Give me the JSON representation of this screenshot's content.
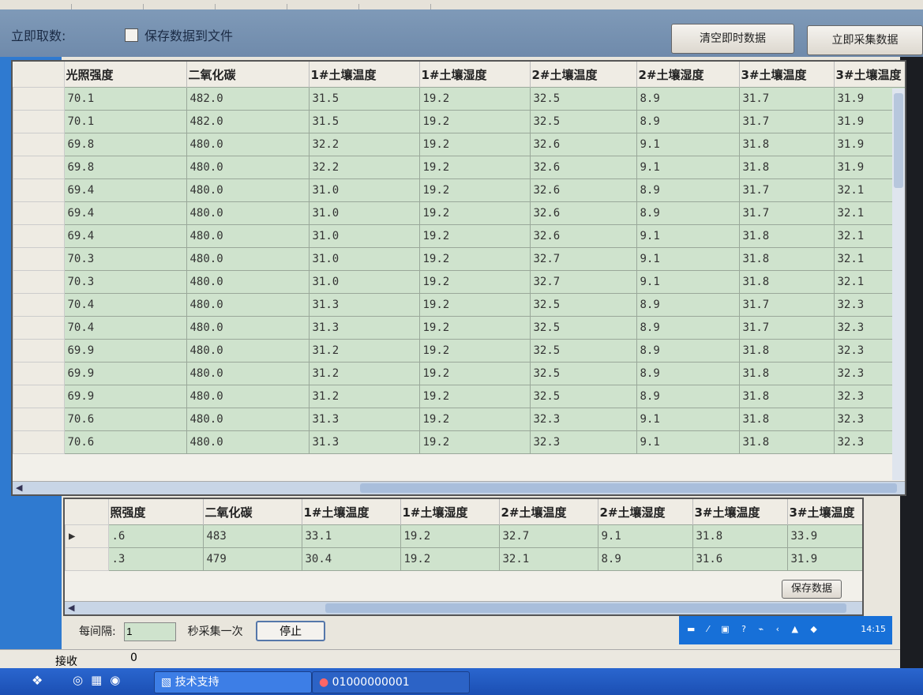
{
  "toolbar": {
    "label": "立即取数:",
    "save_to_file": "保存数据到文件",
    "save_to_file_checked": false,
    "clear_button": "清空即时数据",
    "collect_button": "立即采集数据"
  },
  "columns": [
    "光照强度",
    "二氧化碳",
    "1#土壤温度",
    "1#土壤湿度",
    "2#土壤温度",
    "2#土壤湿度",
    "3#土壤温度",
    "3#土壤温度"
  ],
  "rows": [
    [
      "70.1",
      "482.0",
      "31.5",
      "19.2",
      "32.5",
      "8.9",
      "31.7",
      "31.9"
    ],
    [
      "70.1",
      "482.0",
      "31.5",
      "19.2",
      "32.5",
      "8.9",
      "31.7",
      "31.9"
    ],
    [
      "69.8",
      "480.0",
      "32.2",
      "19.2",
      "32.6",
      "9.1",
      "31.8",
      "31.9"
    ],
    [
      "69.8",
      "480.0",
      "32.2",
      "19.2",
      "32.6",
      "9.1",
      "31.8",
      "31.9"
    ],
    [
      "69.4",
      "480.0",
      "31.0",
      "19.2",
      "32.6",
      "8.9",
      "31.7",
      "32.1"
    ],
    [
      "69.4",
      "480.0",
      "31.0",
      "19.2",
      "32.6",
      "8.9",
      "31.7",
      "32.1"
    ],
    [
      "69.4",
      "480.0",
      "31.0",
      "19.2",
      "32.6",
      "9.1",
      "31.8",
      "32.1"
    ],
    [
      "70.3",
      "480.0",
      "31.0",
      "19.2",
      "32.7",
      "9.1",
      "31.8",
      "32.1"
    ],
    [
      "70.3",
      "480.0",
      "31.0",
      "19.2",
      "32.7",
      "9.1",
      "31.8",
      "32.1"
    ],
    [
      "70.4",
      "480.0",
      "31.3",
      "19.2",
      "32.5",
      "8.9",
      "31.7",
      "32.3"
    ],
    [
      "70.4",
      "480.0",
      "31.3",
      "19.2",
      "32.5",
      "8.9",
      "31.7",
      "32.3"
    ],
    [
      "69.9",
      "480.0",
      "31.2",
      "19.2",
      "32.5",
      "8.9",
      "31.8",
      "32.3"
    ],
    [
      "69.9",
      "480.0",
      "31.2",
      "19.2",
      "32.5",
      "8.9",
      "31.8",
      "32.3"
    ],
    [
      "69.9",
      "480.0",
      "31.2",
      "19.2",
      "32.5",
      "8.9",
      "31.8",
      "32.3"
    ],
    [
      "70.6",
      "480.0",
      "31.3",
      "19.2",
      "32.3",
      "9.1",
      "31.8",
      "32.3"
    ],
    [
      "70.6",
      "480.0",
      "31.3",
      "19.2",
      "32.3",
      "9.1",
      "31.8",
      "32.3"
    ]
  ],
  "saved": {
    "columns": [
      "照强度",
      "二氧化碳",
      "1#土壤温度",
      "1#土壤湿度",
      "2#土壤温度",
      "2#土壤湿度",
      "3#土壤温度",
      "3#土壤温度"
    ],
    "rows": [
      [
        ".6",
        "483",
        "33.1",
        "19.2",
        "32.7",
        "9.1",
        "31.8",
        "33.9"
      ],
      [
        ".3",
        "479",
        "30.4",
        "19.2",
        "32.1",
        "8.9",
        "31.6",
        "31.9"
      ]
    ],
    "save_button": "保存数据"
  },
  "interval": {
    "label": "每间隔:",
    "value": "1",
    "suffix": "秒采集一次",
    "stop_button": "停止"
  },
  "status": {
    "receive_label": "接收",
    "receive_value": "0"
  },
  "taskbar": {
    "tasks": [
      "技术支持",
      "01000000001"
    ],
    "clock": "14:15"
  }
}
